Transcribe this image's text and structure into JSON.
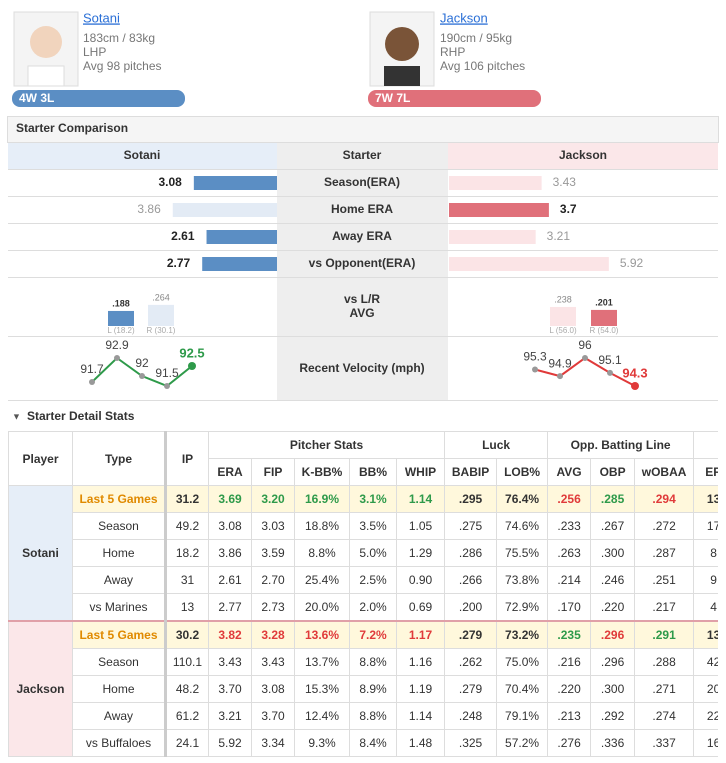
{
  "pitchers": [
    {
      "name": "Sotani",
      "body": "183cm / 83kg",
      "hand": "LHP",
      "pitches": "Avg 98 pitches",
      "record": "4W 3L"
    },
    {
      "name": "Jackson",
      "body": "190cm / 95kg",
      "hand": "RHP",
      "pitches": "Avg 106 pitches",
      "record": "7W 7L"
    }
  ],
  "comparison": {
    "title": "Starter Comparison",
    "headers": [
      "Sotani",
      "Starter",
      "Jackson"
    ],
    "colors": {
      "left_strong": "#5b8ec4",
      "left_weak": "#e3ebf5",
      "right_strong": "#e0707a",
      "right_weak": "#fbe4e6"
    },
    "rows": [
      {
        "label": "Season(ERA)",
        "left": 3.08,
        "right": 3.43
      },
      {
        "label": "Home ERA",
        "left": 3.86,
        "right": 3.7
      },
      {
        "label": "Away ERA",
        "left": 2.61,
        "right": 3.21
      },
      {
        "label": "vs Opponent(ERA)",
        "left": 2.77,
        "right": 5.92
      }
    ],
    "split": {
      "labels": [
        "vs L/R",
        "AVG"
      ],
      "left": [
        {
          "hand": "L (18.2)",
          "avg": {
            "value": 0.188,
            "label": ".188"
          }
        },
        {
          "hand": "R (30.1)",
          "avg": {
            "value": 0.264,
            "label": ".264"
          }
        }
      ],
      "right": [
        {
          "hand": "L (56.0)",
          "avg": {
            "value": 0.238,
            "label": ".238"
          }
        },
        {
          "hand": "R (54.0)",
          "avg": {
            "value": 0.201,
            "label": ".201"
          }
        }
      ]
    },
    "velocity": {
      "label": "Recent Velocity (mph)",
      "left": [
        91.7,
        92.9,
        92,
        91.5,
        92.5
      ],
      "right": [
        95.3,
        94.9,
        96,
        95.1,
        94.3
      ],
      "left_color": "#2e9a4a",
      "right_color": "#e03a3a"
    }
  },
  "detail": {
    "title": "Starter Detail Stats",
    "headers": {
      "player": "Player",
      "type": "Type",
      "ip": "IP",
      "groups": [
        {
          "name": "Pitcher Stats",
          "columns": [
            "ERA",
            "FIP",
            "K-BB%",
            "BB%",
            "WHIP"
          ]
        },
        {
          "name": "Luck",
          "columns": [
            "BABIP",
            "LOB%"
          ]
        },
        {
          "name": "Opp. Batting Line",
          "columns": [
            "AVG",
            "OBP",
            "wOBAA"
          ]
        }
      ],
      "extra": [
        "ER"
      ]
    },
    "highlight": {
      "good": "#2e9a4a",
      "bad": "#e03a3a"
    },
    "players": [
      {
        "name": "Sotani",
        "rows": [
          {
            "type": "Last 5 Games",
            "cells": [
              "31.2",
              "3.69",
              "3.20",
              "16.9%",
              "3.1%",
              "1.14",
              ".295",
              "76.4%",
              ".256",
              ".285",
              ".294",
              "13"
            ],
            "colors": [
              null,
              "good",
              "good",
              "good",
              "good",
              "good",
              null,
              null,
              "bad",
              "good",
              "bad",
              null
            ]
          },
          {
            "type": "Season",
            "cells": [
              "49.2",
              "3.08",
              "3.03",
              "18.8%",
              "3.5%",
              "1.05",
              ".275",
              "74.6%",
              ".233",
              ".267",
              ".272",
              "17"
            ]
          },
          {
            "type": "Home",
            "cells": [
              "18.2",
              "3.86",
              "3.59",
              "8.8%",
              "5.0%",
              "1.29",
              ".286",
              "75.5%",
              ".263",
              ".300",
              ".287",
              "8"
            ]
          },
          {
            "type": "Away",
            "cells": [
              "31",
              "2.61",
              "2.70",
              "25.4%",
              "2.5%",
              "0.90",
              ".266",
              "73.8%",
              ".214",
              ".246",
              ".251",
              "9"
            ]
          },
          {
            "type": "vs Marines",
            "cells": [
              "13",
              "2.77",
              "2.73",
              "20.0%",
              "2.0%",
              "0.69",
              ".200",
              "72.9%",
              ".170",
              ".220",
              ".217",
              "4"
            ]
          }
        ]
      },
      {
        "name": "Jackson",
        "rows": [
          {
            "type": "Last 5 Games",
            "cells": [
              "30.2",
              "3.82",
              "3.28",
              "13.6%",
              "7.2%",
              "1.17",
              ".279",
              "73.2%",
              ".235",
              ".296",
              ".291",
              "13"
            ],
            "colors": [
              null,
              "bad",
              "bad",
              "bad",
              "bad",
              "bad",
              null,
              null,
              "good",
              "bad",
              "good",
              null
            ]
          },
          {
            "type": "Season",
            "cells": [
              "110.1",
              "3.43",
              "3.43",
              "13.7%",
              "8.8%",
              "1.16",
              ".262",
              "75.0%",
              ".216",
              ".296",
              ".288",
              "42"
            ]
          },
          {
            "type": "Home",
            "cells": [
              "48.2",
              "3.70",
              "3.08",
              "15.3%",
              "8.9%",
              "1.19",
              ".279",
              "70.4%",
              ".220",
              ".300",
              ".271",
              "20"
            ]
          },
          {
            "type": "Away",
            "cells": [
              "61.2",
              "3.21",
              "3.70",
              "12.4%",
              "8.8%",
              "1.14",
              ".248",
              "79.1%",
              ".213",
              ".292",
              ".274",
              "22"
            ]
          },
          {
            "type": "vs Buffaloes",
            "cells": [
              "24.1",
              "5.92",
              "3.34",
              "9.3%",
              "8.4%",
              "1.48",
              ".325",
              "57.2%",
              ".276",
              ".336",
              ".337",
              "16"
            ]
          }
        ]
      }
    ]
  }
}
